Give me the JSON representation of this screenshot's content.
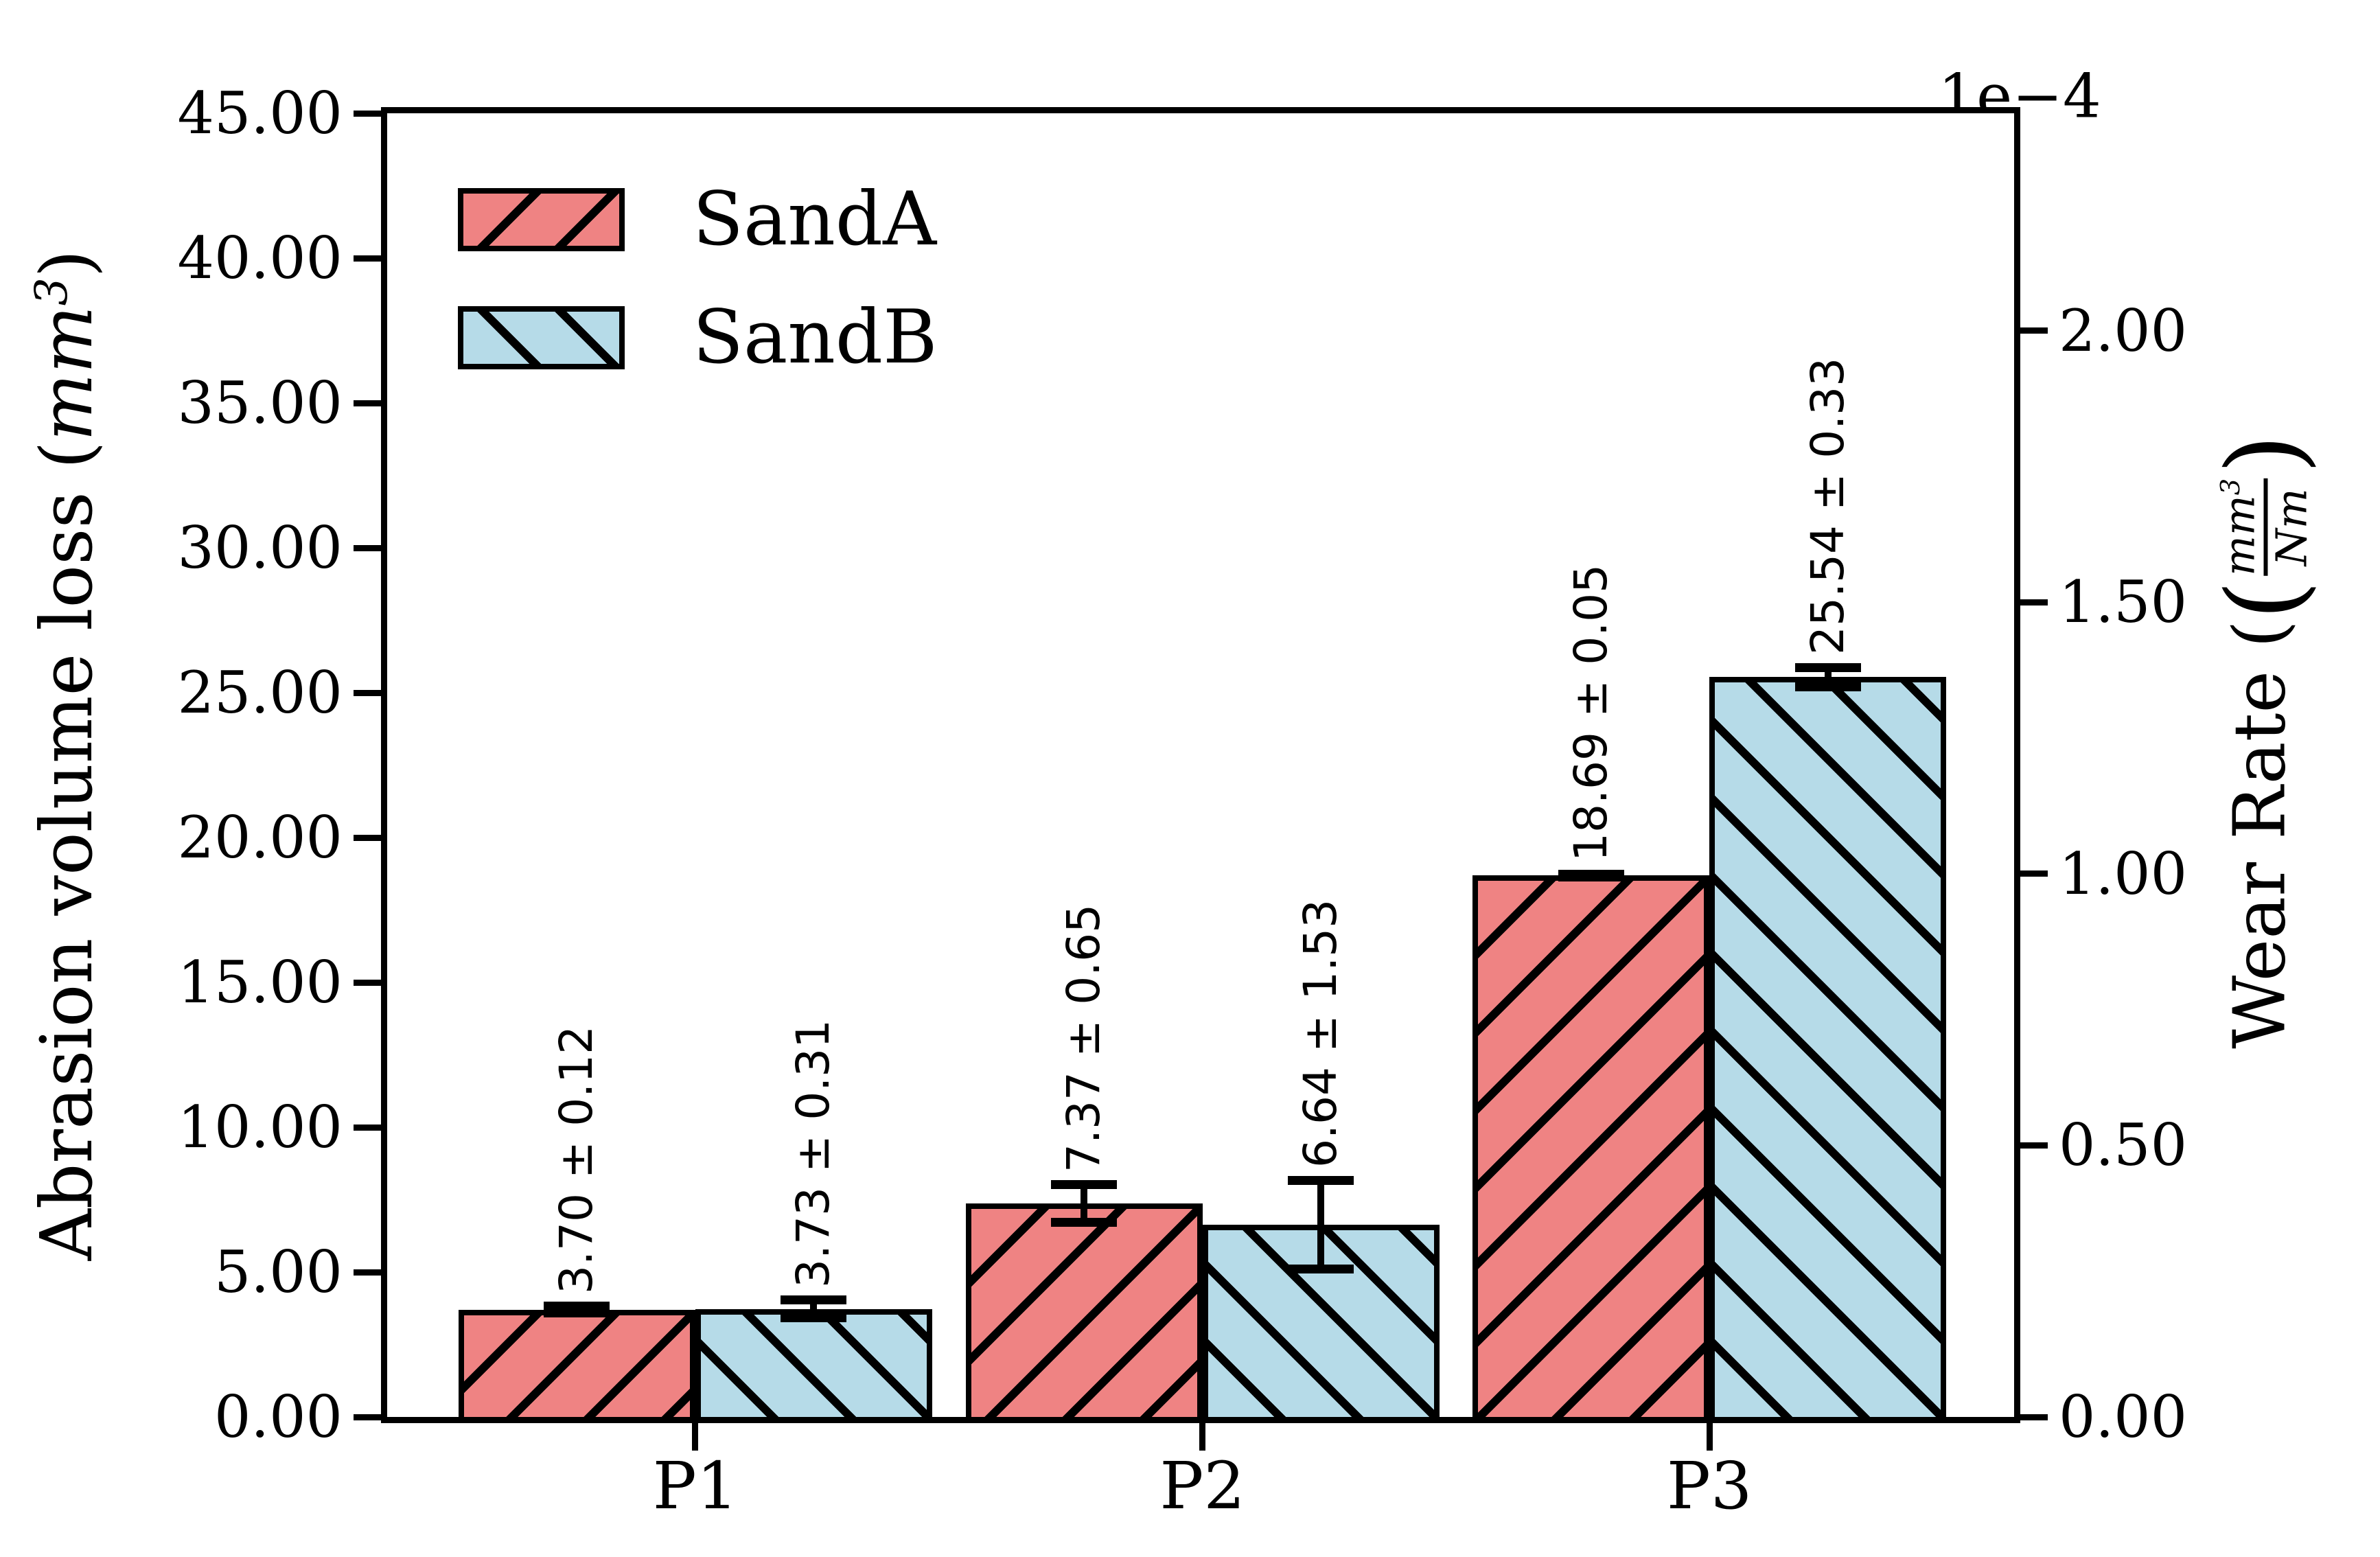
{
  "chart_data": {
    "type": "bar",
    "title": "",
    "categories": [
      "P1",
      "P2",
      "P3"
    ],
    "series": [
      {
        "name": "SandA",
        "color": "#ef8383",
        "hatch": "/",
        "values": [
          3.7,
          7.37,
          18.69
        ],
        "errors": [
          0.12,
          0.65,
          0.05
        ],
        "bar_labels": [
          "3.70 ± 0.12",
          "7.37 ± 0.65",
          "18.69 ± 0.05"
        ]
      },
      {
        "name": "SandB",
        "color": "#b6dbe8",
        "hatch": "\\",
        "values": [
          3.73,
          6.64,
          25.54
        ],
        "errors": [
          0.31,
          1.53,
          0.33
        ],
        "bar_labels": [
          "3.73 ± 0.31",
          "6.64 ± 1.53",
          "25.54 ± 0.33"
        ]
      }
    ],
    "left_axis": {
      "label": "Abrasion volume loss (mm³)",
      "label_prefix": "Abrasion volume loss (",
      "label_unit": "mm",
      "label_sup": "3",
      "label_suffix": ")",
      "ticks": [
        "0.00",
        "5.00",
        "10.00",
        "15.00",
        "20.00",
        "25.00",
        "30.00",
        "35.00",
        "40.00",
        "45.00"
      ],
      "tick_values": [
        0,
        5,
        10,
        15,
        20,
        25,
        30,
        35,
        40,
        45
      ],
      "range": [
        0,
        45
      ]
    },
    "right_axis": {
      "label": "Wear Rate (mm³/Nm)",
      "label_prefix": "Wear Rate (",
      "frac_num": "mm",
      "frac_num_sup": "3",
      "frac_den": "Nm",
      "label_suffix": ")",
      "ticks": [
        "0.00",
        "0.50",
        "1.00",
        "1.50",
        "2.00"
      ],
      "tick_values": [
        0,
        0.5,
        1.0,
        1.5,
        2.0
      ],
      "range": [
        0,
        2.4
      ],
      "offset_label": "1e−4"
    },
    "legend": {
      "position": "upper-left",
      "entries": [
        "SandA",
        "SandB"
      ]
    },
    "grid": false,
    "background": "#ffffff"
  }
}
